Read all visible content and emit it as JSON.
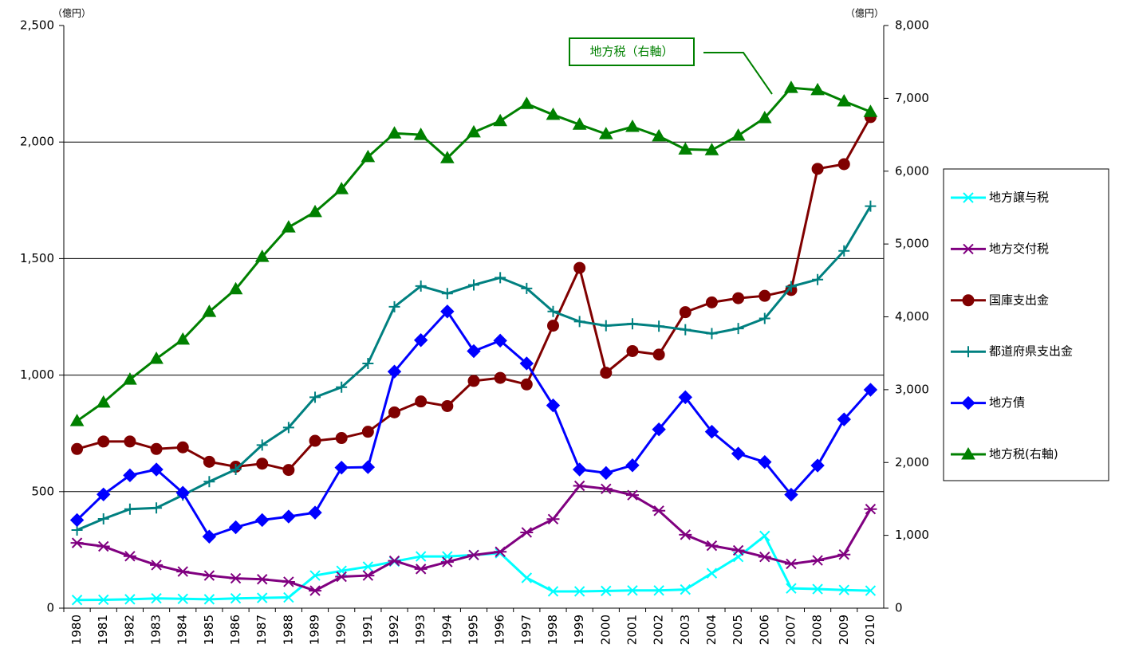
{
  "chart_data": {
    "type": "line",
    "y_label": "（億円）",
    "y2_label": "（億円）",
    "annotation": "地方税（右軸）",
    "categories": [
      "1980",
      "1981",
      "1982",
      "1983",
      "1984",
      "1985",
      "1986",
      "1987",
      "1988",
      "1989",
      "1990",
      "1991",
      "1992",
      "1993",
      "1994",
      "1995",
      "1996",
      "1997",
      "1998",
      "1999",
      "2000",
      "2001",
      "2002",
      "2003",
      "2004",
      "2005",
      "2006",
      "2007",
      "2008",
      "2009",
      "2010"
    ],
    "ylim": [
      0,
      2500
    ],
    "yticks": [
      0,
      500,
      {
        "value": 1000,
        "label": "1,000"
      },
      {
        "value": 1500,
        "label": "1,500"
      },
      {
        "value": 2000,
        "label": "2,000"
      },
      {
        "value": 2500,
        "label": "2,500"
      }
    ],
    "y2lim": [
      0,
      8000
    ],
    "y2ticks": [
      0,
      {
        "value": 1000,
        "label": "1,000"
      },
      {
        "value": 2000,
        "label": "2,000"
      },
      {
        "value": 3000,
        "label": "3,000"
      },
      {
        "value": 4000,
        "label": "4,000"
      },
      {
        "value": 5000,
        "label": "5,000"
      },
      {
        "value": 6000,
        "label": "6,000"
      },
      {
        "value": 7000,
        "label": "7,000"
      },
      {
        "value": 8000,
        "label": "8,000"
      }
    ],
    "grid": true,
    "legend": "right",
    "series": [
      {
        "name": "地方譲与税",
        "color": "#00ffff",
        "marker": "x",
        "values": [
          35,
          36,
          38,
          42,
          40,
          38,
          42,
          44,
          46,
          140,
          160,
          178,
          200,
          222,
          222,
          228,
          236,
          130,
          72,
          72,
          74,
          76,
          76,
          80,
          150,
          220,
          310,
          85,
          82,
          78,
          75
        ]
      },
      {
        "name": "地方交付税",
        "color": "#800080",
        "marker": "star",
        "values": [
          280,
          265,
          223,
          185,
          157,
          140,
          128,
          124,
          113,
          75,
          135,
          140,
          203,
          168,
          198,
          228,
          242,
          325,
          382,
          525,
          512,
          485,
          418,
          315,
          268,
          248,
          220,
          190,
          205,
          230,
          425
        ]
      },
      {
        "name": "国庫支出金",
        "color": "#800000",
        "marker": "circle",
        "values": [
          683,
          715,
          715,
          683,
          690,
          628,
          607,
          620,
          593,
          718,
          730,
          757,
          840,
          887,
          867,
          975,
          988,
          960,
          1212,
          1460,
          1010,
          1103,
          1088,
          1270,
          1312,
          1330,
          1340,
          1365,
          1885,
          1905,
          2107
        ]
      },
      {
        "name": "都道府県支出金",
        "color": "#008080",
        "marker": "plus",
        "values": [
          335,
          383,
          425,
          430,
          485,
          543,
          595,
          700,
          775,
          905,
          948,
          1050,
          1293,
          1382,
          1350,
          1387,
          1418,
          1372,
          1273,
          1230,
          1212,
          1220,
          1210,
          1195,
          1178,
          1200,
          1243,
          1380,
          1410,
          1533,
          1725
        ]
      },
      {
        "name": "地方債",
        "color": "#0000ff",
        "marker": "diamond",
        "values": [
          378,
          488,
          570,
          595,
          495,
          307,
          347,
          378,
          393,
          410,
          603,
          605,
          1015,
          1150,
          1273,
          1103,
          1148,
          1050,
          870,
          595,
          580,
          613,
          767,
          905,
          757,
          663,
          627,
          487,
          612,
          810,
          937
        ]
      },
      {
        "name": "地方税(右軸)",
        "color": "#008000",
        "marker": "triangle",
        "axis": "y2",
        "values": [
          2570,
          2825,
          3140,
          3425,
          3690,
          4070,
          4380,
          4825,
          5230,
          5440,
          5755,
          6195,
          6520,
          6500,
          6180,
          6535,
          6690,
          6925,
          6775,
          6640,
          6510,
          6610,
          6480,
          6300,
          6290,
          6490,
          6730,
          7145,
          7115,
          6960,
          6815
        ]
      }
    ]
  }
}
